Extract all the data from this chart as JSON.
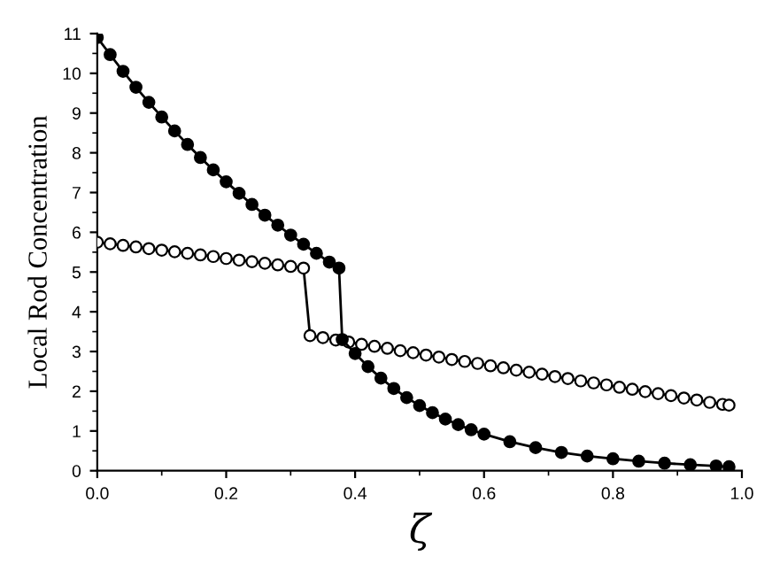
{
  "chart_data": {
    "type": "line",
    "xlabel": "ζ",
    "ylabel": "Local Rod Concentration",
    "marker": "circle",
    "xlim": [
      0,
      1.0
    ],
    "ylim": [
      0,
      11
    ],
    "xticks": [
      {
        "value": 0,
        "label": "0.0"
      },
      0.2,
      0.4,
      0.6,
      0.8,
      {
        "value": 1.0,
        "label": "1.0"
      }
    ],
    "yticks": [
      0,
      1,
      2,
      3,
      4,
      5,
      6,
      7,
      8,
      9,
      10,
      11
    ],
    "grid": false,
    "legend": false,
    "series": [
      {
        "color": "#000000",
        "x": [
          0,
          0.02,
          0.04,
          0.06,
          0.08,
          0.1,
          0.12,
          0.14,
          0.16,
          0.18,
          0.2,
          0.22,
          0.24,
          0.26,
          0.28,
          0.3,
          0.32,
          0.34,
          0.36,
          0.375,
          0.38,
          0.4,
          0.42,
          0.44,
          0.46,
          0.48,
          0.5,
          0.52,
          0.54,
          0.56,
          0.58,
          0.6,
          0.64,
          0.68,
          0.72,
          0.76,
          0.8,
          0.84,
          0.88,
          0.92,
          0.96,
          0.98
        ],
        "values": [
          10.9,
          10.47,
          10.05,
          9.65,
          9.27,
          8.9,
          8.55,
          8.21,
          7.88,
          7.57,
          7.27,
          6.98,
          6.7,
          6.43,
          6.18,
          5.93,
          5.7,
          5.47,
          5.25,
          5.1,
          3.3,
          2.95,
          2.62,
          2.33,
          2.07,
          1.84,
          1.64,
          1.46,
          1.3,
          1.16,
          1.03,
          0.92,
          0.73,
          0.58,
          0.46,
          0.37,
          0.3,
          0.24,
          0.19,
          0.15,
          0.12,
          0.1
        ]
      },
      {
        "color": "#000000",
        "x": [
          0,
          0.02,
          0.04,
          0.06,
          0.08,
          0.1,
          0.12,
          0.14,
          0.16,
          0.18,
          0.2,
          0.22,
          0.24,
          0.26,
          0.28,
          0.3,
          0.32,
          0.33,
          0.35,
          0.37,
          0.39,
          0.41,
          0.43,
          0.45,
          0.47,
          0.49,
          0.51,
          0.53,
          0.55,
          0.57,
          0.59,
          0.61,
          0.63,
          0.65,
          0.67,
          0.69,
          0.71,
          0.73,
          0.75,
          0.77,
          0.79,
          0.81,
          0.83,
          0.85,
          0.87,
          0.89,
          0.91,
          0.93,
          0.95,
          0.97,
          0.98
        ],
        "values": [
          5.75,
          5.71,
          5.67,
          5.63,
          5.59,
          5.55,
          5.51,
          5.47,
          5.43,
          5.39,
          5.34,
          5.3,
          5.26,
          5.22,
          5.18,
          5.14,
          5.1,
          3.4,
          3.35,
          3.29,
          3.24,
          3.18,
          3.13,
          3.08,
          3.02,
          2.97,
          2.91,
          2.86,
          2.8,
          2.75,
          2.7,
          2.64,
          2.59,
          2.53,
          2.48,
          2.43,
          2.37,
          2.32,
          2.26,
          2.21,
          2.16,
          2.1,
          2.05,
          1.99,
          1.94,
          1.89,
          1.83,
          1.78,
          1.72,
          1.67,
          1.65
        ]
      }
    ]
  }
}
